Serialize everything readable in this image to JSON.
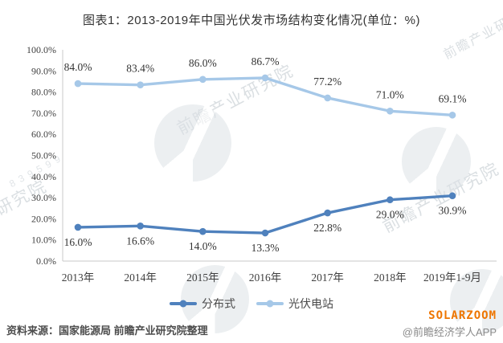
{
  "title": "图表1：2013-2019年中国光伏发市场结构变化情况(单位：%)",
  "chart_data": {
    "type": "line",
    "categories": [
      "2013年",
      "2014年",
      "2015年",
      "2016年",
      "2017年",
      "2018年",
      "2019年1-9月"
    ],
    "series": [
      {
        "name": "分布式",
        "color": "#4f81bd",
        "values": [
          16.0,
          16.6,
          14.0,
          13.3,
          22.8,
          29.0,
          30.9
        ],
        "label_position": "below"
      },
      {
        "name": "光伏电站",
        "color": "#a6c8e8",
        "values": [
          84.0,
          83.4,
          86.0,
          86.7,
          77.2,
          71.0,
          69.1
        ],
        "label_position": "above"
      }
    ],
    "title": "图表1：2013-2019年中国光伏发市场结构变化情况(单位：%)",
    "xlabel": "",
    "ylabel": "",
    "ylim": [
      0,
      100
    ],
    "ytick_step": 10,
    "ytick_labels": [
      "0.0%",
      "10.0%",
      "20.0%",
      "30.0%",
      "40.0%",
      "50.0%",
      "60.0%",
      "70.0%",
      "80.0%",
      "90.0%",
      "100.0%"
    ],
    "grid": false,
    "legend_position": "bottom"
  },
  "footer": {
    "source": "资料来源：国家能源局 前瞻产业研究院整理",
    "brand": "SOLARZOOM",
    "brand_color": "#ee7500",
    "credit": "@前瞻经济学人APP"
  },
  "watermark": {
    "text": "前瞻产业研究院",
    "code": "839599"
  }
}
